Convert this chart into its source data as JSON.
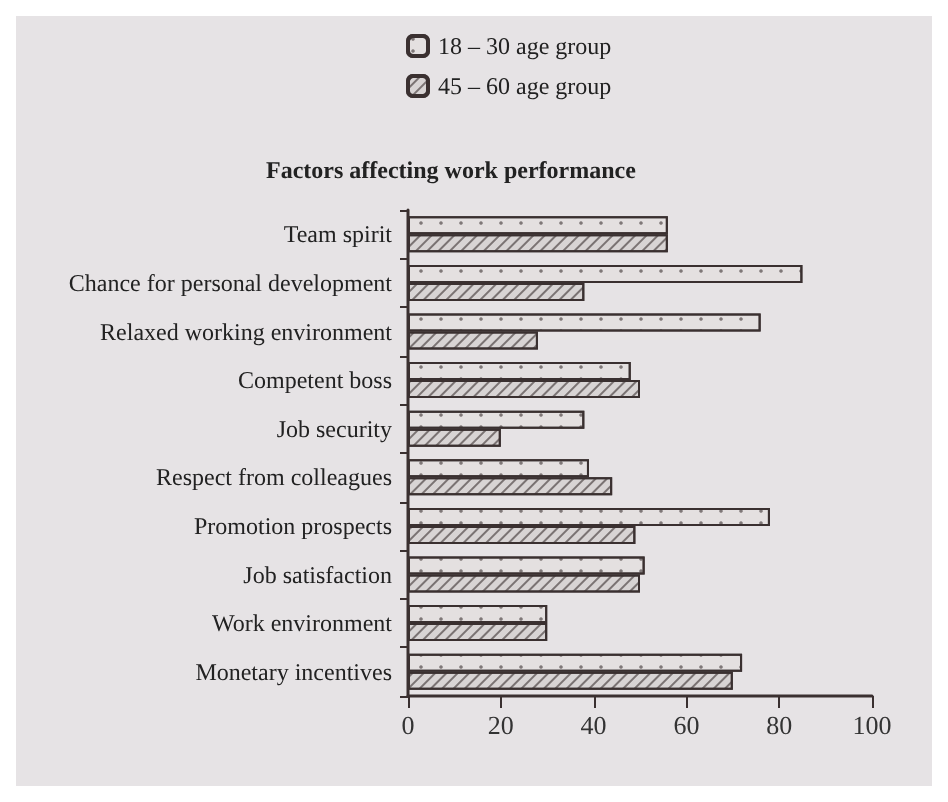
{
  "chart_data": {
    "type": "bar",
    "orientation": "horizontal",
    "title": "Factors affecting work performance",
    "categories": [
      "Team spirit",
      "Chance for personal development",
      "Relaxed working environment",
      "Competent boss",
      "Job security",
      "Respect from colleagues",
      "Promotion prospects",
      "Job satisfaction",
      "Work environment",
      "Monetary incentives"
    ],
    "series": [
      {
        "name": "18 – 30 age group",
        "color": "#e4e0e0",
        "values": [
          56,
          85,
          76,
          48,
          38,
          39,
          78,
          51,
          30,
          72
        ]
      },
      {
        "name": "45 – 60 age group",
        "color": "#d8d4d4",
        "values": [
          56,
          38,
          28,
          50,
          20,
          44,
          49,
          50,
          30,
          70
        ]
      }
    ],
    "xlim": [
      0,
      100
    ],
    "xticks": [
      0,
      20,
      40,
      60,
      80,
      100
    ],
    "legend": "top",
    "grid": false
  }
}
